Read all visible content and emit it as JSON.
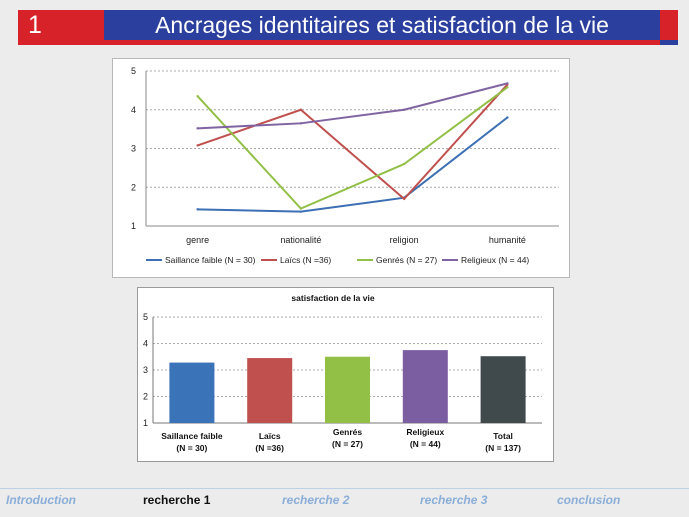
{
  "header": {
    "number": "1",
    "title": "Ancrages identitaires et satisfaction de la vie"
  },
  "nav": [
    "Introduction",
    "recherche 1",
    "recherche 2",
    "recherche 3",
    "conclusion"
  ],
  "chart_data": [
    {
      "type": "line",
      "categories": [
        "genre",
        "nationalité",
        "religion",
        "humanité"
      ],
      "ylim": [
        1,
        5
      ],
      "yticks": [
        "1",
        "2",
        "3",
        "4",
        "5"
      ],
      "grid": true,
      "legend_position": "bottom",
      "series": [
        {
          "name": "Saillance faible  (N = 30)",
          "color": "#3c6fb3",
          "values": [
            1.43,
            1.37,
            1.73,
            3.8
          ]
        },
        {
          "name": "Laïcs (N =36)",
          "color": "#c0504d",
          "values": [
            3.08,
            4.0,
            1.7,
            4.65
          ]
        },
        {
          "name": "Genrés (N = 27)",
          "color": "#92c047",
          "values": [
            4.35,
            1.45,
            2.6,
            4.58
          ]
        },
        {
          "name": "Religieux  (N = 44)",
          "color": "#8064a2",
          "values": [
            3.52,
            3.65,
            4.0,
            4.68
          ]
        }
      ]
    },
    {
      "type": "bar",
      "title": "satisfaction de la vie",
      "categories": [
        "Saillance faible",
        "Laïcs",
        "Genrés",
        "Religieux",
        "Total"
      ],
      "sublabels": [
        "(N   = 30)",
        "(N =36)",
        "(N = 27)",
        "(N = 44)",
        "(N = 137)"
      ],
      "colors": [
        "#3b73b9",
        "#c0504d",
        "#92c047",
        "#7b5ea1",
        "#404a4c"
      ],
      "values": [
        3.28,
        3.45,
        3.5,
        3.75,
        3.52
      ],
      "ylim": [
        1,
        5
      ],
      "yticks": [
        "1",
        "2",
        "3",
        "4",
        "5"
      ],
      "grid": true
    }
  ]
}
